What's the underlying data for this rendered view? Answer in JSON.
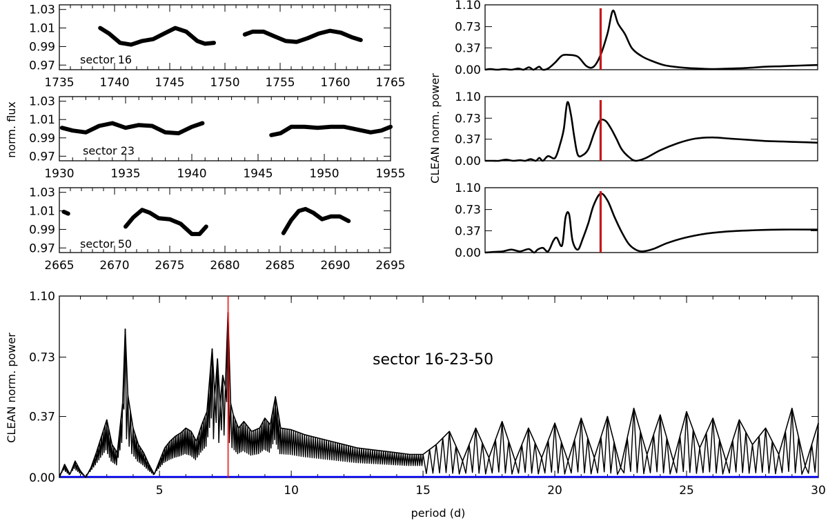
{
  "figure": {
    "ylabel_left": "norm. flux",
    "ylabel_right": "CLEAN norm. power",
    "ylabel_bottom": "CLEAN norm. power",
    "xlabel_bottom": "period (d)",
    "line_color": "#000000",
    "marker_color": "#000000",
    "period_marker_color": "#ff0000",
    "zero_line_color": "#0000ff"
  },
  "chart_data": [
    {
      "type": "scatter",
      "panel": "light-curve-sector-16",
      "annotation": "sector 16",
      "xlim": [
        1735,
        1765
      ],
      "ylim": [
        0.965,
        1.035
      ],
      "xticks": [
        "1735",
        "1740",
        "1745",
        "1750",
        "1755",
        "1760",
        "1765"
      ],
      "yticks": [
        "0.97",
        "0.99",
        "1.01",
        "1.03"
      ],
      "x": [
        1738.7,
        1739.5,
        1740.5,
        1741.5,
        1742.5,
        1743.5,
        1744.5,
        1745.5,
        1746.5,
        1747.5,
        1748.2,
        1749.0,
        1751.8,
        1752.5,
        1753.5,
        1754.5,
        1755.5,
        1756.5,
        1757.5,
        1758.5,
        1759.5,
        1760.5,
        1761.5,
        1762.3
      ],
      "values": [
        1.01,
        1.004,
        0.994,
        0.992,
        0.996,
        0.998,
        1.004,
        1.01,
        1.006,
        0.996,
        0.993,
        0.994,
        1.003,
        1.006,
        1.006,
        1.001,
        0.996,
        0.995,
        0.999,
        1.004,
        1.007,
        1.005,
        1.0,
        0.997
      ]
    },
    {
      "type": "scatter",
      "panel": "light-curve-sector-23",
      "annotation": "sector 23",
      "xlim": [
        1930,
        1955
      ],
      "ylim": [
        0.965,
        1.035
      ],
      "xticks": [
        "1930",
        "1935",
        "1940",
        "1945",
        "1950",
        "1955"
      ],
      "yticks": [
        "0.97",
        "0.99",
        "1.01",
        "1.03"
      ],
      "x": [
        1930.2,
        1931.0,
        1932.0,
        1933.0,
        1934.0,
        1935.0,
        1936.0,
        1937.0,
        1938.0,
        1939.0,
        1940.0,
        1940.8,
        1946.0,
        1946.7,
        1947.5,
        1948.5,
        1949.5,
        1950.5,
        1951.5,
        1952.5,
        1953.5,
        1954.3,
        1955.0
      ],
      "values": [
        1.001,
        0.998,
        0.996,
        1.003,
        1.006,
        1.001,
        1.004,
        1.003,
        0.996,
        0.995,
        1.002,
        1.006,
        0.993,
        0.995,
        1.002,
        1.002,
        1.001,
        1.002,
        1.002,
        0.999,
        0.996,
        0.998,
        1.002
      ]
    },
    {
      "type": "scatter",
      "panel": "light-curve-sector-50",
      "annotation": "sector 50",
      "xlim": [
        2665,
        2695
      ],
      "ylim": [
        0.965,
        1.035
      ],
      "xticks": [
        "2665",
        "2670",
        "2675",
        "2680",
        "2685",
        "2690",
        "2695"
      ],
      "yticks": [
        "0.97",
        "0.99",
        "1.01",
        "1.03"
      ],
      "x": [
        2665.4,
        2665.8,
        2671.0,
        2671.7,
        2672.5,
        2673.2,
        2674.0,
        2675.0,
        2676.0,
        2677.0,
        2677.7,
        2678.3,
        2685.3,
        2686.0,
        2686.7,
        2687.3,
        2688.0,
        2688.8,
        2689.6,
        2690.4,
        2691.2
      ],
      "values": [
        1.009,
        1.007,
        0.993,
        1.003,
        1.011,
        1.008,
        1.002,
        1.001,
        0.996,
        0.985,
        0.985,
        0.993,
        0.986,
        1.0,
        1.01,
        1.012,
        1.008,
        1.001,
        1.004,
        1.004,
        0.999
      ]
    },
    {
      "type": "line",
      "panel": "power-spectrum-sector-16",
      "ylim": [
        0,
        1.1
      ],
      "yticks": [
        "0.00",
        "0.37",
        "0.73",
        "1.10"
      ],
      "peak_period_marker": 7.6,
      "x": [
        1.0,
        1.3,
        1.7,
        2.1,
        2.5,
        2.9,
        3.2,
        3.5,
        3.75,
        3.9,
        4.1,
        4.3,
        4.6,
        5.0,
        5.4,
        5.8,
        6.3,
        6.8,
        7.2,
        7.6,
        8.0,
        8.3,
        8.6,
        9.0,
        9.4,
        10.0,
        10.6,
        11.2,
        11.8,
        12.5,
        13.2,
        14.0,
        15.0,
        16.0,
        17.0,
        18.0,
        19.0,
        20.0
      ],
      "values": [
        0.0,
        0.01,
        0.0,
        0.01,
        0.0,
        0.02,
        0.0,
        0.04,
        0.0,
        0.02,
        0.05,
        0.0,
        0.02,
        0.12,
        0.24,
        0.25,
        0.22,
        0.06,
        0.05,
        0.25,
        0.62,
        1.0,
        0.78,
        0.6,
        0.36,
        0.22,
        0.14,
        0.08,
        0.05,
        0.03,
        0.02,
        0.01,
        0.02,
        0.03,
        0.05,
        0.06,
        0.07,
        0.08
      ]
    },
    {
      "type": "line",
      "panel": "power-spectrum-sector-23",
      "ylim": [
        0,
        1.1
      ],
      "yticks": [
        "0.00",
        "0.37",
        "0.73",
        "1.10"
      ],
      "peak_period_marker": 7.6,
      "x": [
        1.0,
        1.4,
        1.8,
        2.2,
        2.6,
        3.0,
        3.3,
        3.6,
        3.9,
        4.1,
        4.3,
        4.6,
        5.0,
        5.3,
        5.5,
        5.7,
        5.9,
        6.1,
        6.3,
        6.6,
        6.9,
        7.2,
        7.4,
        7.6,
        7.9,
        8.2,
        8.5,
        8.8,
        9.2,
        9.6,
        10.2,
        11.0,
        12.0,
        13.0,
        14.0,
        15.0,
        16.0,
        17.0,
        18.0,
        19.0,
        20.0
      ],
      "values": [
        0.0,
        0.0,
        0.0,
        0.02,
        0.0,
        0.01,
        0.0,
        0.03,
        0.0,
        0.05,
        0.0,
        0.08,
        0.05,
        0.3,
        0.55,
        1.0,
        0.8,
        0.4,
        0.1,
        0.1,
        0.2,
        0.45,
        0.6,
        0.7,
        0.68,
        0.55,
        0.38,
        0.2,
        0.07,
        0.0,
        0.05,
        0.18,
        0.3,
        0.38,
        0.4,
        0.38,
        0.36,
        0.34,
        0.33,
        0.32,
        0.31
      ]
    },
    {
      "type": "line",
      "panel": "power-spectrum-sector-50",
      "ylim": [
        0,
        1.1
      ],
      "yticks": [
        "0.00",
        "0.37",
        "0.73",
        "1.10"
      ],
      "peak_period_marker": 7.6,
      "x": [
        1.0,
        1.5,
        2.0,
        2.5,
        3.0,
        3.5,
        3.8,
        4.0,
        4.3,
        4.6,
        4.9,
        5.1,
        5.4,
        5.6,
        5.8,
        6.0,
        6.3,
        6.6,
        6.9,
        7.2,
        7.6,
        8.0,
        8.4,
        8.8,
        9.2,
        9.6,
        10.0,
        10.6,
        11.4,
        12.4,
        13.6,
        15.0,
        16.5,
        18.0,
        20.0
      ],
      "values": [
        0.0,
        0.01,
        0.02,
        0.05,
        0.02,
        0.06,
        0.0,
        0.05,
        0.08,
        0.02,
        0.2,
        0.25,
        0.12,
        0.6,
        0.65,
        0.2,
        0.05,
        0.25,
        0.5,
        0.8,
        1.0,
        0.88,
        0.6,
        0.35,
        0.15,
        0.05,
        0.02,
        0.06,
        0.16,
        0.25,
        0.32,
        0.36,
        0.38,
        0.39,
        0.39
      ]
    },
    {
      "type": "line",
      "panel": "power-spectrum-combined",
      "annotation": "sector 16-23-50",
      "xlabel": "period (d)",
      "xlim": [
        1.2,
        30
      ],
      "ylim": [
        0,
        1.1
      ],
      "xticks": [
        "5",
        "10",
        "15",
        "20",
        "25",
        "30"
      ],
      "yticks": [
        "0.00",
        "0.37",
        "0.73",
        "1.10"
      ],
      "peak_period_marker": 7.6,
      "x": [
        1.2,
        1.4,
        1.6,
        1.8,
        2.0,
        2.2,
        2.4,
        2.6,
        2.8,
        3.0,
        3.2,
        3.4,
        3.6,
        3.7,
        3.8,
        3.9,
        4.0,
        4.2,
        4.4,
        4.6,
        4.8,
        5.0,
        5.2,
        5.4,
        5.6,
        5.8,
        6.0,
        6.2,
        6.4,
        6.6,
        6.8,
        7.0,
        7.1,
        7.2,
        7.3,
        7.4,
        7.5,
        7.6,
        7.7,
        7.8,
        8.0,
        8.2,
        8.5,
        8.8,
        9.0,
        9.2,
        9.4,
        9.6,
        10.0,
        10.5,
        11.0,
        11.5,
        12.0,
        12.5,
        13.0,
        13.5,
        14.0,
        14.5,
        15.0,
        15.5,
        16.0,
        16.5,
        17.0,
        17.5,
        18.0,
        18.5,
        19.0,
        19.5,
        20.0,
        20.5,
        21.0,
        21.5,
        22.0,
        22.5,
        23.0,
        23.5,
        24.0,
        24.5,
        25.0,
        25.5,
        26.0,
        26.5,
        27.0,
        27.5,
        28.0,
        28.5,
        29.0,
        29.5,
        30.0
      ],
      "values": [
        0.0,
        0.08,
        0.02,
        0.1,
        0.04,
        0.0,
        0.06,
        0.15,
        0.25,
        0.35,
        0.2,
        0.15,
        0.45,
        0.9,
        0.5,
        0.4,
        0.3,
        0.2,
        0.15,
        0.08,
        0.02,
        0.1,
        0.18,
        0.22,
        0.25,
        0.27,
        0.3,
        0.28,
        0.22,
        0.32,
        0.4,
        0.78,
        0.5,
        0.72,
        0.45,
        0.62,
        0.55,
        1.0,
        0.45,
        0.38,
        0.3,
        0.34,
        0.28,
        0.3,
        0.36,
        0.32,
        0.49,
        0.3,
        0.29,
        0.26,
        0.24,
        0.22,
        0.2,
        0.18,
        0.17,
        0.16,
        0.15,
        0.14,
        0.14,
        0.2,
        0.28,
        0.1,
        0.3,
        0.12,
        0.34,
        0.1,
        0.3,
        0.12,
        0.33,
        0.1,
        0.36,
        0.12,
        0.37,
        0.06,
        0.42,
        0.14,
        0.38,
        0.1,
        0.4,
        0.18,
        0.36,
        0.1,
        0.35,
        0.2,
        0.3,
        0.14,
        0.42,
        0.07,
        0.33
      ]
    }
  ]
}
